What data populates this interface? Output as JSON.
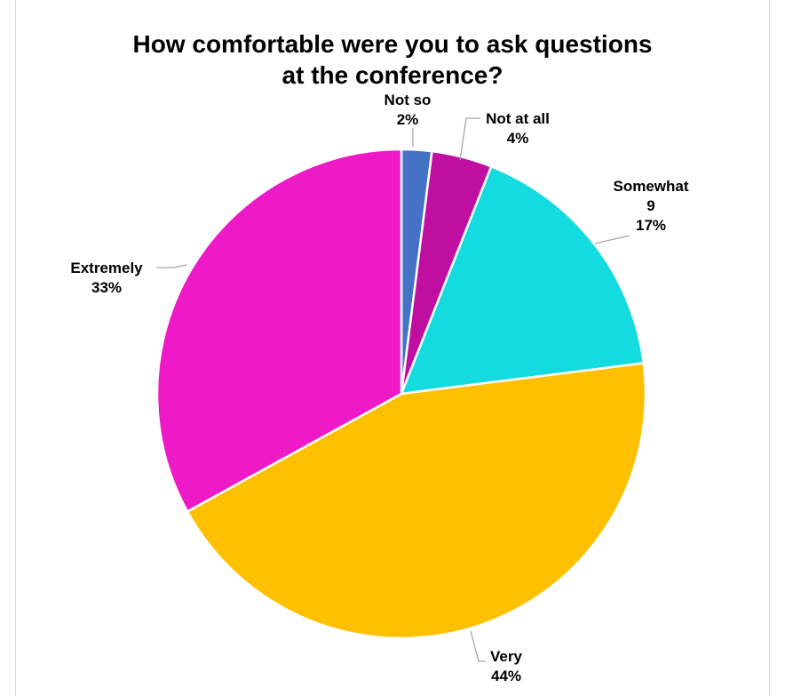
{
  "chart_data": {
    "type": "pie",
    "title": "How comfortable were you to ask questions at the conference?",
    "title_lines": [
      "How comfortable were you to ask questions",
      "at the conference?"
    ],
    "slices": [
      {
        "label": "Not so",
        "value": 2,
        "percent_label": "2%",
        "color": "#4472c4"
      },
      {
        "label": "Not at all",
        "value": 4,
        "percent_label": "4%",
        "color": "#c00fa0"
      },
      {
        "label": "Somewhat",
        "value": 17,
        "count_label": "9",
        "percent_label": "17%",
        "color": "#13dbe0"
      },
      {
        "label": "Very",
        "value": 44,
        "percent_label": "44%",
        "color": "#ffc000"
      },
      {
        "label": "Extremely",
        "value": 33,
        "percent_label": "33%",
        "color": "#ee1ac8"
      }
    ],
    "legend": "none",
    "data_labels": "outside-with-leader-lines"
  }
}
